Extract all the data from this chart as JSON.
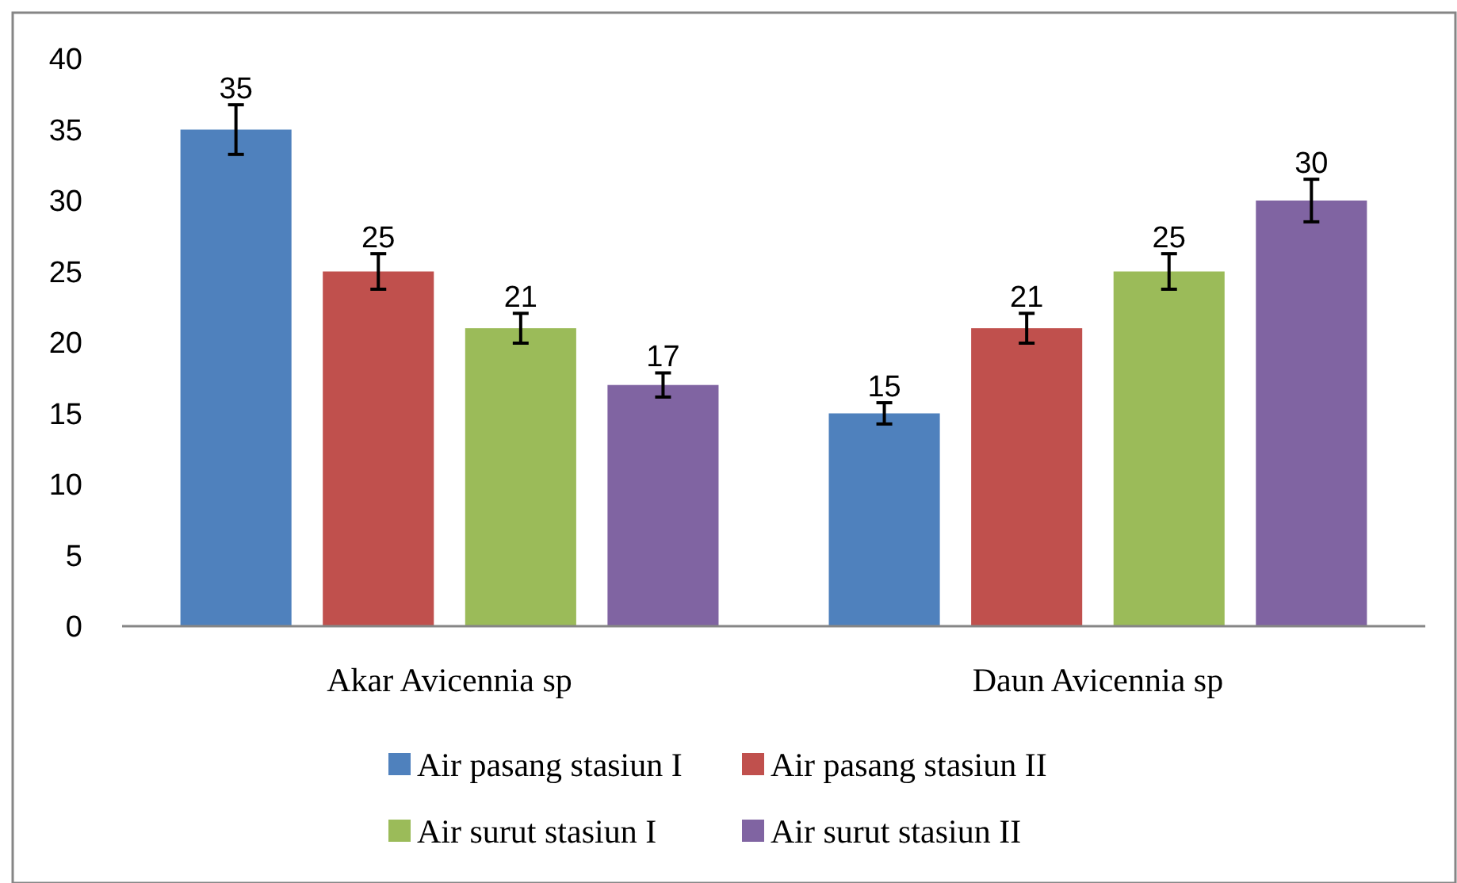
{
  "chart_data": {
    "type": "bar",
    "categories": [
      "Akar Avicennia sp",
      "Daun Avicennia sp"
    ],
    "series": [
      {
        "name": "Air pasang stasiun I",
        "color": "#4f81bd",
        "values": [
          35,
          15
        ],
        "errors": [
          1.75,
          0.75
        ]
      },
      {
        "name": "Air pasang stasiun II",
        "color": "#c0504d",
        "values": [
          25,
          21
        ],
        "errors": [
          1.25,
          1.05
        ]
      },
      {
        "name": "Air surut stasiun I",
        "color": "#9bbb59",
        "values": [
          21,
          25
        ],
        "errors": [
          1.05,
          1.25
        ]
      },
      {
        "name": "Air surut stasiun II",
        "color": "#8064a2",
        "values": [
          17,
          30
        ],
        "errors": [
          0.85,
          1.5
        ]
      }
    ],
    "ylim": [
      0,
      40
    ],
    "yticks": [
      0,
      5,
      10,
      15,
      20,
      25,
      30,
      35,
      40
    ],
    "grid": false,
    "legend": "bottom",
    "data_labels": true
  }
}
